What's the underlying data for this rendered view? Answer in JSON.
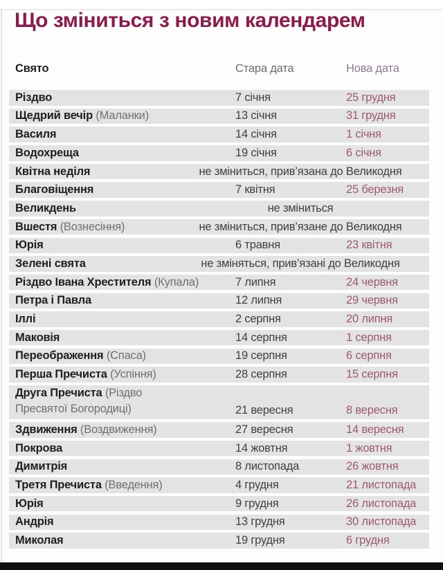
{
  "title": "Що зміниться з новим календарем",
  "colors": {
    "title": "#8c1b4b",
    "new_date_text": "#9c5a70",
    "new_date_header": "#8d7c90",
    "old_date_text": "#3f3f3f",
    "row_band": "#e4e3e4",
    "bottom_bar": "#0f0f0f"
  },
  "chart_data": {
    "type": "table",
    "title": "Що зміниться з новим календарем",
    "columns": [
      "Свято",
      "Стара дата",
      "Нова дата"
    ],
    "rows": [
      {
        "name": "Різдво",
        "old": "7 січня",
        "new": "25 грудня"
      },
      {
        "name": "Щедрий вечір",
        "note": "(Маланки)",
        "old": "13 січня",
        "new": "31 грудня"
      },
      {
        "name": "Василя",
        "old": "14 січня",
        "new": "1 січня"
      },
      {
        "name": "Водохреща",
        "old": "19 січня",
        "new": "6 січня"
      },
      {
        "name": "Квітна неділя",
        "span": "не зміниться, прив’язана до Великодня"
      },
      {
        "name": "Благовіщення",
        "old": "7 квітня",
        "new": "25 березня"
      },
      {
        "name": "Великдень",
        "span": "не зміниться"
      },
      {
        "name": "Вшестя",
        "note": "(Вознесіння)",
        "span": "не зміниться, прив’язане до Великодня"
      },
      {
        "name": "Юрія",
        "old": "6 травня",
        "new": "23 квітня"
      },
      {
        "name": "Зелені свята",
        "span": "не зміняться, прив’язані до Великодня"
      },
      {
        "name": "Різдво Івана Хрестителя",
        "note": "(Купала)",
        "old": "7 липня",
        "new": "24 червня"
      },
      {
        "name": "Петра і Павла",
        "old": "12 липня",
        "new": "29 червня"
      },
      {
        "name": "Іллі",
        "old": "2 серпня",
        "new": "20 липня"
      },
      {
        "name": "Маковія",
        "old": "14 серпня",
        "new": "1 серпня"
      },
      {
        "name": "Переображення",
        "note": "(Спаса)",
        "old": "19 серпня",
        "new": "6 серпня"
      },
      {
        "name": "Перша Пречиста",
        "note": "(Успіння)",
        "old": "28 серпня",
        "new": "15 серпня"
      },
      {
        "name": "Друга Пречиста",
        "note": "(Різдво Пресвятої Богородиці)",
        "old": "21 вересня",
        "new": "8 вересня",
        "tall": true
      },
      {
        "name": "Здвиження",
        "note": "(Воздвиження)",
        "old": "27 вересня",
        "new": "14 вересня"
      },
      {
        "name": "Покрова",
        "old": "14 жовтня",
        "new": "1 жовтня"
      },
      {
        "name": "Димитрія",
        "old": "8 листопада",
        "new": "26 жовтня"
      },
      {
        "name": "Третя Пречиста",
        "note": "(Введення)",
        "old": "4 грудня",
        "new": "21 листопада"
      },
      {
        "name": "Юрія",
        "old": "9 грудня",
        "new": "26 листопада"
      },
      {
        "name": "Андрія",
        "old": "13 грудня",
        "new": "30 листопада"
      },
      {
        "name": "Миколая",
        "old": "19 грудня",
        "new": "6 грудня"
      }
    ]
  }
}
